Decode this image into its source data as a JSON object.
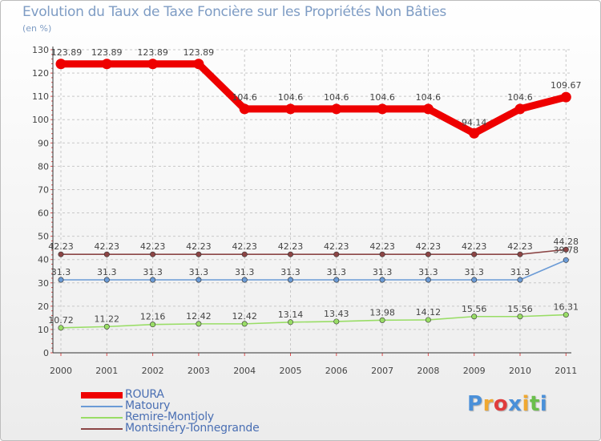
{
  "chart_data": {
    "type": "line",
    "title": "Evolution du Taux de Taxe Foncière sur les Propriétés Non Bâties",
    "ylabel": "(en %)",
    "xlabel": "",
    "categories": [
      "2000",
      "2001",
      "2002",
      "2003",
      "2004",
      "2005",
      "2006",
      "2007",
      "2008",
      "2009",
      "2010",
      "2011"
    ],
    "ylim": [
      0,
      130
    ],
    "yticks": [
      0,
      10,
      20,
      30,
      40,
      50,
      60,
      70,
      80,
      90,
      100,
      110,
      120,
      130
    ],
    "grid": true,
    "legend_position": "bottom-left",
    "series": [
      {
        "name": "ROURA",
        "color": "#ee0000",
        "values": [
          123.89,
          123.89,
          123.89,
          123.89,
          104.6,
          104.6,
          104.6,
          104.6,
          104.6,
          94.14,
          104.6,
          109.67
        ],
        "labels": [
          "123.89",
          "123.89",
          "123.89",
          "123.89",
          "104.6",
          "104.6",
          "104.6",
          "104.6",
          "104.6",
          "94.14",
          "104.6",
          "109.67"
        ]
      },
      {
        "name": "Matoury",
        "color": "#6b9bd6",
        "values": [
          31.3,
          31.3,
          31.3,
          31.3,
          31.3,
          31.3,
          31.3,
          31.3,
          31.3,
          31.3,
          31.3,
          39.78
        ],
        "labels": [
          "31.3",
          "31.3",
          "31.3",
          "31.3",
          "31.3",
          "31.3",
          "31.3",
          "31.3",
          "31.3",
          "31.3",
          "31.3",
          "39.78"
        ]
      },
      {
        "name": "Remire-Montjoly",
        "color": "#99dd66",
        "values": [
          10.72,
          11.22,
          12.16,
          12.42,
          12.42,
          13.14,
          13.43,
          13.98,
          14.12,
          15.56,
          15.56,
          16.31
        ],
        "labels": [
          "10.72",
          "11.22",
          "12.16",
          "12.42",
          "12.42",
          "13.14",
          "13.43",
          "13.98",
          "14.12",
          "15.56",
          "15.56",
          "16.31"
        ]
      },
      {
        "name": "Montsinéry-Tonnegrande",
        "color": "#8b4545",
        "values": [
          42.23,
          42.23,
          42.23,
          42.23,
          42.23,
          42.23,
          42.23,
          42.23,
          42.23,
          42.23,
          42.23,
          44.28
        ],
        "labels": [
          "42.23",
          "42.23",
          "42.23",
          "42.23",
          "42.23",
          "42.23",
          "42.23",
          "42.23",
          "42.23",
          "42.23",
          "42.23",
          "44.28"
        ]
      }
    ]
  },
  "brand": {
    "letters": [
      "P",
      "r",
      "o",
      "x",
      "i",
      "t",
      "i"
    ],
    "colors": [
      "#4a90d9",
      "#f0a830",
      "#e03c3c",
      "#4a90d9",
      "#f0a830",
      "#6abf4b",
      "#4a90d9"
    ]
  }
}
